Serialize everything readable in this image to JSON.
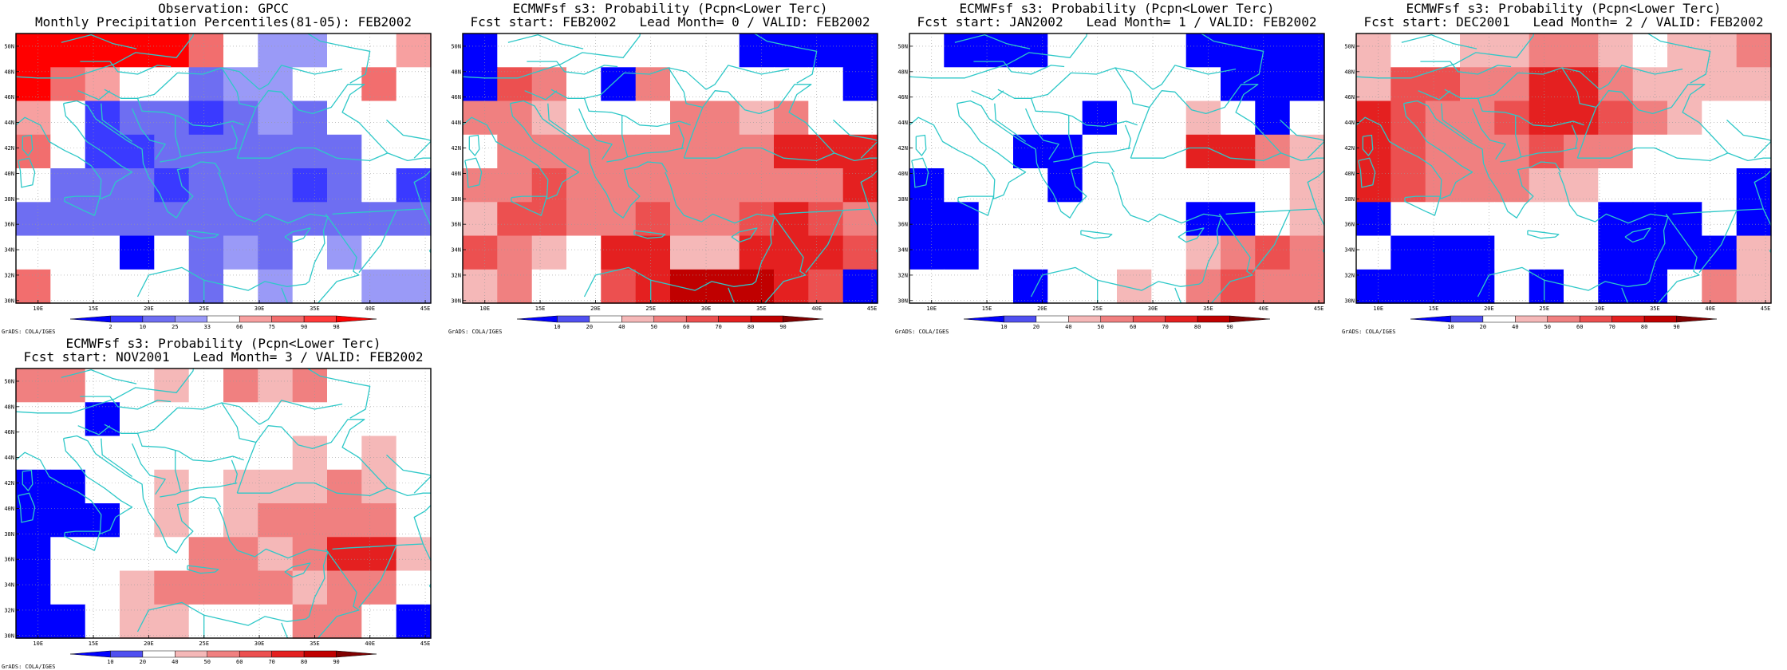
{
  "figure": {
    "panels": [
      {
        "id": "obs",
        "title_line1": "Observation: GPCC",
        "title_line2": "Monthly Precipitation Percentiles(81-05): FEB2002",
        "colorbar": {
          "labels": [
            "2",
            "10",
            "25",
            "33",
            "66",
            "75",
            "90",
            "98"
          ],
          "colors": [
            "#0000ff",
            "#3a3aff",
            "#6e6ef2",
            "#9a9af7",
            "#ffffff",
            "#f7a0a0",
            "#f26e6e",
            "#ff3a3a",
            "#ff0000"
          ]
        },
        "credit": "GrADS: COLA/IGES"
      },
      {
        "id": "lead0",
        "title_line1": "ECMWFsf s3: Probability (Pcpn<Lower Terc)",
        "title_line2": "Fcst start: FEB2002   Lead Month= 0 / VALID: FEB2002",
        "colorbar": {
          "labels": [
            "10",
            "20",
            "40",
            "50",
            "60",
            "70",
            "80",
            "90"
          ],
          "colors": [
            "#0000ff",
            "#5050f0",
            "#ffffff",
            "#f5b8b8",
            "#f08080",
            "#ec5050",
            "#e42020",
            "#c00000",
            "#800000"
          ]
        },
        "credit": "GrADS: COLA/IGES"
      },
      {
        "id": "lead1",
        "title_line1": "ECMWFsf s3: Probability (Pcpn<Lower Terc)",
        "title_line2": "Fcst start: JAN2002   Lead Month= 1 / VALID: FEB2002",
        "colorbar": {
          "labels": [
            "10",
            "20",
            "40",
            "50",
            "60",
            "70",
            "80",
            "90"
          ],
          "colors": [
            "#0000ff",
            "#5050f0",
            "#ffffff",
            "#f5b8b8",
            "#f08080",
            "#ec5050",
            "#e42020",
            "#c00000",
            "#800000"
          ]
        },
        "credit": "GrADS: COLA/IGES"
      },
      {
        "id": "lead2",
        "title_line1": "ECMWFsf s3: Probability (Pcpn<Lower Terc)",
        "title_line2": "Fcst start: DEC2001   Lead Month= 2 / VALID: FEB2002",
        "colorbar": {
          "labels": [
            "10",
            "20",
            "40",
            "50",
            "60",
            "70",
            "80",
            "90"
          ],
          "colors": [
            "#0000ff",
            "#5050f0",
            "#ffffff",
            "#f5b8b8",
            "#f08080",
            "#ec5050",
            "#e42020",
            "#c00000",
            "#800000"
          ]
        },
        "credit": "GrADS: COLA/IGES"
      },
      {
        "id": "lead3",
        "title_line1": "ECMWFsf s3: Probability (Pcpn<Lower Terc)",
        "title_line2": "Fcst start: NOV2001   Lead Month= 3 / VALID: FEB2002",
        "colorbar": {
          "labels": [
            "10",
            "20",
            "40",
            "50",
            "60",
            "70",
            "80",
            "90"
          ],
          "colors": [
            "#0000ff",
            "#5050f0",
            "#ffffff",
            "#f5b8b8",
            "#f08080",
            "#ec5050",
            "#e42020",
            "#c00000",
            "#800000"
          ]
        },
        "credit": "GrADS: COLA/IGES"
      }
    ],
    "axes": {
      "lat_labels": [
        "50N",
        "48N",
        "46N",
        "44N",
        "42N",
        "40N",
        "38N",
        "36N",
        "34N",
        "32N",
        "30N"
      ],
      "lon_labels": [
        "10E",
        "15E",
        "20E",
        "25E",
        "30E",
        "35E",
        "40E",
        "45E"
      ]
    }
  }
}
